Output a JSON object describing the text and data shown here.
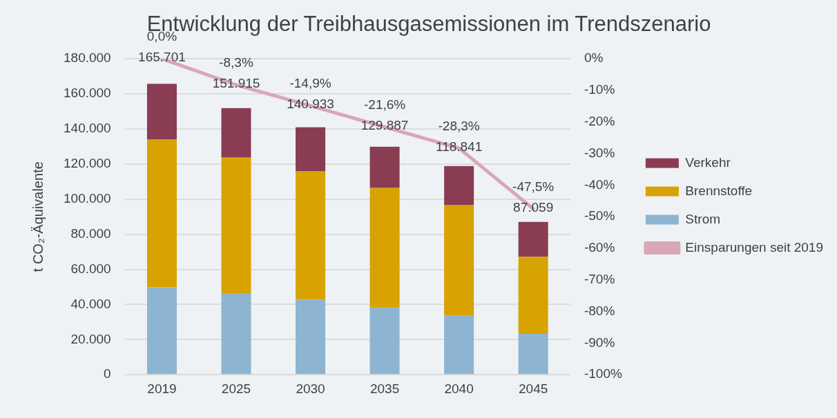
{
  "chart_data": {
    "type": "bar",
    "title": "Entwicklung der Treibhausgasemissionen im Trendszenario",
    "ylabel": "t CO₂-Äquivalente",
    "categories": [
      "2019",
      "2025",
      "2030",
      "2035",
      "2040",
      "2045"
    ],
    "stacked": true,
    "series": [
      {
        "name": "Strom",
        "color": "#8db4d0",
        "values": [
          49800,
          46500,
          42700,
          38100,
          33600,
          23300
        ]
      },
      {
        "name": "Brennstoffe",
        "color": "#d8a200",
        "values": [
          84200,
          77400,
          73300,
          68300,
          63000,
          43900
        ]
      },
      {
        "name": "Verkehr",
        "color": "#893c52",
        "values": [
          31701,
          28015,
          24933,
          23487,
          22241,
          19859
        ]
      },
      {
        "name": "Einsparungen seit 2019",
        "type": "line",
        "axis": "y2",
        "color": "#d8a7b7",
        "values": [
          0,
          -8.3,
          -14.9,
          -21.6,
          -28.3,
          -47.5
        ],
        "value_labels": [
          "0,0%",
          "-8,3%",
          "-14,9%",
          "-21,6%",
          "-28,3%",
          "-47,5%"
        ]
      }
    ],
    "totals": [
      "165.701",
      "151.915",
      "140.933",
      "129.887",
      "118.841",
      "87.059"
    ],
    "ylim": [
      0,
      180000
    ],
    "yticks": [
      0,
      {
        "value": 20000,
        "label": "20.000"
      },
      {
        "value": 40000,
        "label": "40.000"
      },
      {
        "value": 60000,
        "label": "60.000"
      },
      {
        "value": 80000,
        "label": "80.000"
      },
      {
        "value": 100000,
        "label": "100.000"
      },
      {
        "value": 120000,
        "label": "120.000"
      },
      {
        "value": 140000,
        "label": "140.000"
      },
      {
        "value": 160000,
        "label": "160.000"
      },
      {
        "value": 180000,
        "label": "180.000"
      }
    ],
    "y2lim": [
      -100,
      0
    ],
    "y2ticks": [
      {
        "value": -100,
        "label": "-100%"
      },
      {
        "value": -90,
        "label": "-90%"
      },
      {
        "value": -80,
        "label": "-80%"
      },
      {
        "value": -70,
        "label": "-70%"
      },
      {
        "value": -60,
        "label": "-60%"
      },
      {
        "value": -50,
        "label": "-50%"
      },
      {
        "value": -40,
        "label": "-40%"
      },
      {
        "value": -30,
        "label": "-30%"
      },
      {
        "value": -20,
        "label": "-20%"
      },
      {
        "value": -10,
        "label": "-10%"
      },
      {
        "value": 0,
        "label": "0%"
      }
    ],
    "grid": "y",
    "legend": "right",
    "marker": "none"
  }
}
